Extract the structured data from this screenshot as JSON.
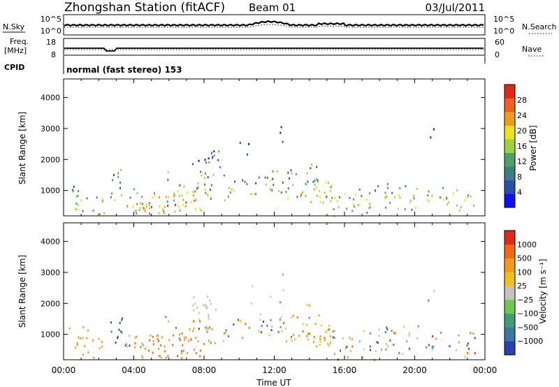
{
  "header": {
    "station": "Zhongshan Station (fitACF)",
    "beam": "Beam 01",
    "date": "03/Jul/2011"
  },
  "top_panels": {
    "nsky": {
      "label": "N.Sky",
      "ticks": [
        "10^5",
        "10^0"
      ],
      "right_label": "N.Search",
      "right_ticks": [
        "10^5",
        "10^0"
      ]
    },
    "freq": {
      "label_line1": "Freq.",
      "label_line2": "[MHz]",
      "ticks": [
        "18",
        "8"
      ],
      "right_label": "Nave",
      "right_ticks": [
        "60",
        "0"
      ]
    },
    "cpid": {
      "label": "CPID",
      "text": "normal (fast stereo) 153"
    }
  },
  "chart_data": [
    {
      "type": "heatmap",
      "name": "power",
      "ylabel": "Slant Range [km]",
      "ylim": [
        180,
        4600
      ],
      "yticks": [
        1000,
        2000,
        3000,
        4000
      ],
      "xlim": [
        0,
        24
      ],
      "colorbar": {
        "label": "Power [dB]",
        "range": [
          0,
          32
        ],
        "tick_labels": [
          "4",
          "8",
          "12",
          "16",
          "20",
          "24",
          "28"
        ],
        "colors": [
          "#1010f0",
          "#2850a8",
          "#3a7e86",
          "#4ea06a",
          "#9ed040",
          "#f0e020",
          "#f09a20",
          "#f06020",
          "#e02818"
        ]
      }
    },
    {
      "type": "heatmap",
      "name": "velocity",
      "ylabel": "Slant Range [km]",
      "ylim": [
        180,
        4600
      ],
      "yticks": [
        1000,
        2000,
        3000,
        4000
      ],
      "xlim": [
        0,
        24
      ],
      "colorbar": {
        "label": "Velocity [m s⁻¹]",
        "tick_labels": [
          "1000",
          "500",
          "100",
          "25",
          "−25",
          "−100",
          "−500",
          "−1000"
        ],
        "colors": [
          "#2a40b0",
          "#3a78a8",
          "#3f9e78",
          "#70c850",
          "#c4c4bc",
          "#f0c020",
          "#f09a20",
          "#f06818",
          "#e02818"
        ]
      }
    }
  ],
  "x_axis": {
    "ticks": [
      "00:00",
      "04:00",
      "08:00",
      "12:00",
      "16:00",
      "20:00",
      "00:00"
    ],
    "label": "Time UT"
  }
}
